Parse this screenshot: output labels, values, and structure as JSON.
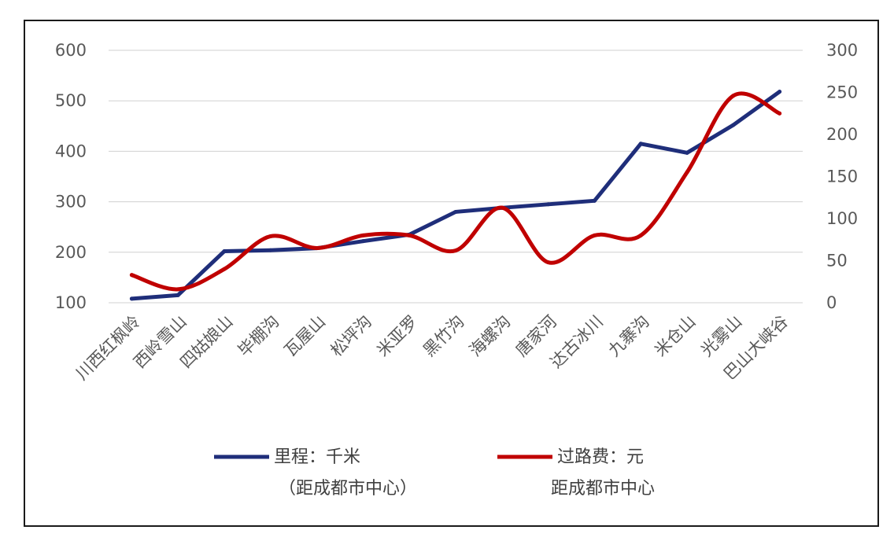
{
  "chart_data": {
    "type": "line",
    "categories": [
      "川西红枫岭",
      "西岭雪山",
      "四姑娘山",
      "毕棚沟",
      "瓦屋山",
      "松坪沟",
      "米亚罗",
      "黑竹沟",
      "海螺沟",
      "唐家河",
      "达古冰川",
      "九寨沟",
      "米仓山",
      "光雾山",
      "巴山大峡谷"
    ],
    "series": [
      {
        "name": "里程：千米",
        "name_line2": "（距成都市中心）",
        "axis": "left",
        "color": "#1f2e7a",
        "smooth": false,
        "values": [
          108,
          115,
          202,
          204,
          208,
          222,
          235,
          280,
          288,
          295,
          302,
          415,
          397,
          452,
          518
        ]
      },
      {
        "name": "过路费：元",
        "name_line2": "距成都市中心",
        "axis": "right",
        "color": "#c00000",
        "smooth": true,
        "values": [
          33,
          16,
          40,
          79,
          65,
          80,
          80,
          62,
          113,
          48,
          80,
          80,
          155,
          246,
          225
        ]
      }
    ],
    "y_left": {
      "min": 100,
      "max": 600,
      "ticks": [
        100,
        200,
        300,
        400,
        500,
        600
      ]
    },
    "y_right": {
      "min": 0,
      "max": 300,
      "ticks": [
        0,
        50,
        100,
        150,
        200,
        250,
        300
      ]
    },
    "grid": true,
    "legend_position": "bottom"
  }
}
